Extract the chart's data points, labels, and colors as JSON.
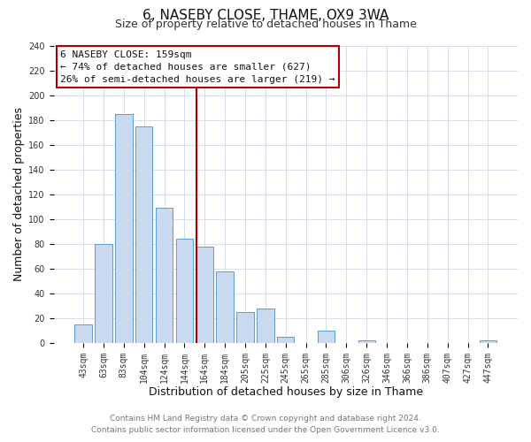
{
  "title": "6, NASEBY CLOSE, THAME, OX9 3WA",
  "subtitle": "Size of property relative to detached houses in Thame",
  "xlabel": "Distribution of detached houses by size in Thame",
  "ylabel": "Number of detached properties",
  "bar_labels": [
    "43sqm",
    "63sqm",
    "83sqm",
    "104sqm",
    "124sqm",
    "144sqm",
    "164sqm",
    "184sqm",
    "205sqm",
    "225sqm",
    "245sqm",
    "265sqm",
    "285sqm",
    "306sqm",
    "326sqm",
    "346sqm",
    "366sqm",
    "386sqm",
    "407sqm",
    "427sqm",
    "447sqm"
  ],
  "bar_values": [
    15,
    80,
    185,
    175,
    109,
    84,
    78,
    58,
    25,
    28,
    5,
    0,
    10,
    0,
    2,
    0,
    0,
    0,
    0,
    0,
    2
  ],
  "bar_color": "#c9d9f0",
  "bar_edge_color": "#5b9bd5",
  "ylim": [
    0,
    240
  ],
  "yticks": [
    0,
    20,
    40,
    60,
    80,
    100,
    120,
    140,
    160,
    180,
    200,
    220,
    240
  ],
  "property_label": "6 NASEBY CLOSE: 159sqm",
  "annotation_line1": "← 74% of detached houses are smaller (627)",
  "annotation_line2": "26% of semi-detached houses are larger (219) →",
  "vline_color": "#aa0000",
  "annotation_box_edge_color": "#aa0000",
  "footer_line1": "Contains HM Land Registry data © Crown copyright and database right 2024.",
  "footer_line2": "Contains public sector information licensed under the Open Government Licence v3.0.",
  "bg_color": "#ffffff",
  "plot_bg_color": "#ffffff",
  "grid_color": "#d0d8e8",
  "title_fontsize": 11,
  "subtitle_fontsize": 9,
  "axis_label_fontsize": 9,
  "tick_fontsize": 7,
  "annotation_fontsize": 8,
  "footer_fontsize": 6.5,
  "vline_x": 5.575
}
